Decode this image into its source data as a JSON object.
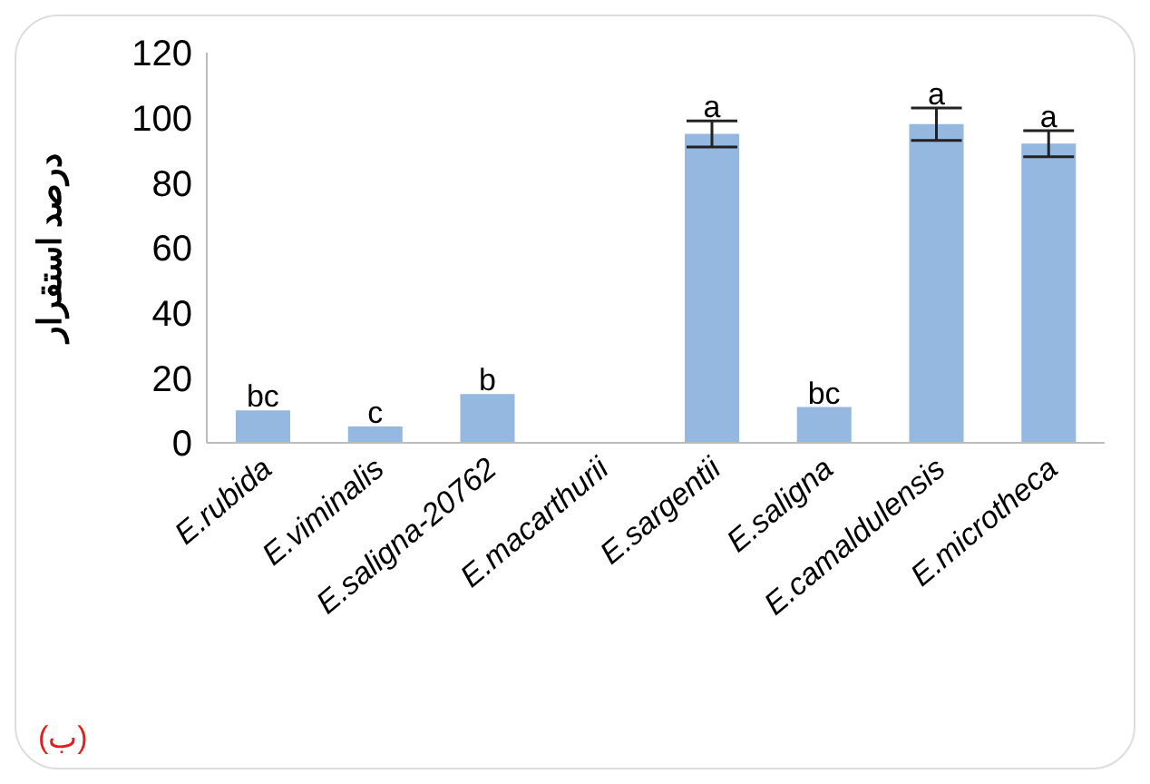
{
  "chart_data": {
    "type": "bar",
    "ylabel": "درصد استقرار",
    "categories": [
      "E.rubida",
      "E.viminalis",
      "E.saligna-20762",
      "E.macarthurii",
      "E.sargentii",
      "E.saligna",
      "E.camaldulensis",
      "E.microtheca"
    ],
    "values": [
      10,
      5,
      15,
      0,
      95,
      11,
      98,
      92
    ],
    "errors": [
      null,
      null,
      null,
      null,
      4,
      null,
      5,
      4
    ],
    "color": "#95b8e0",
    "ylim": [
      0,
      120
    ],
    "yticks": [
      0,
      20,
      40,
      60,
      80,
      100,
      120
    ],
    "annotations": [
      {
        "text": "bc",
        "x": "E.rubida",
        "y": 10
      },
      {
        "text": "c",
        "x": "E.viminalis",
        "y": 5
      },
      {
        "text": "b",
        "x": "E.saligna-20762",
        "y": 15
      },
      {
        "text": "a",
        "x": "E.sargentii",
        "y": 99
      },
      {
        "text": "bc",
        "x": "E.saligna",
        "y": 11
      },
      {
        "text": "a",
        "x": "E.camaldulensis",
        "y": 103
      },
      {
        "text": "a",
        "x": "E.microtheca",
        "y": 96
      },
      "(ب)"
    ]
  }
}
